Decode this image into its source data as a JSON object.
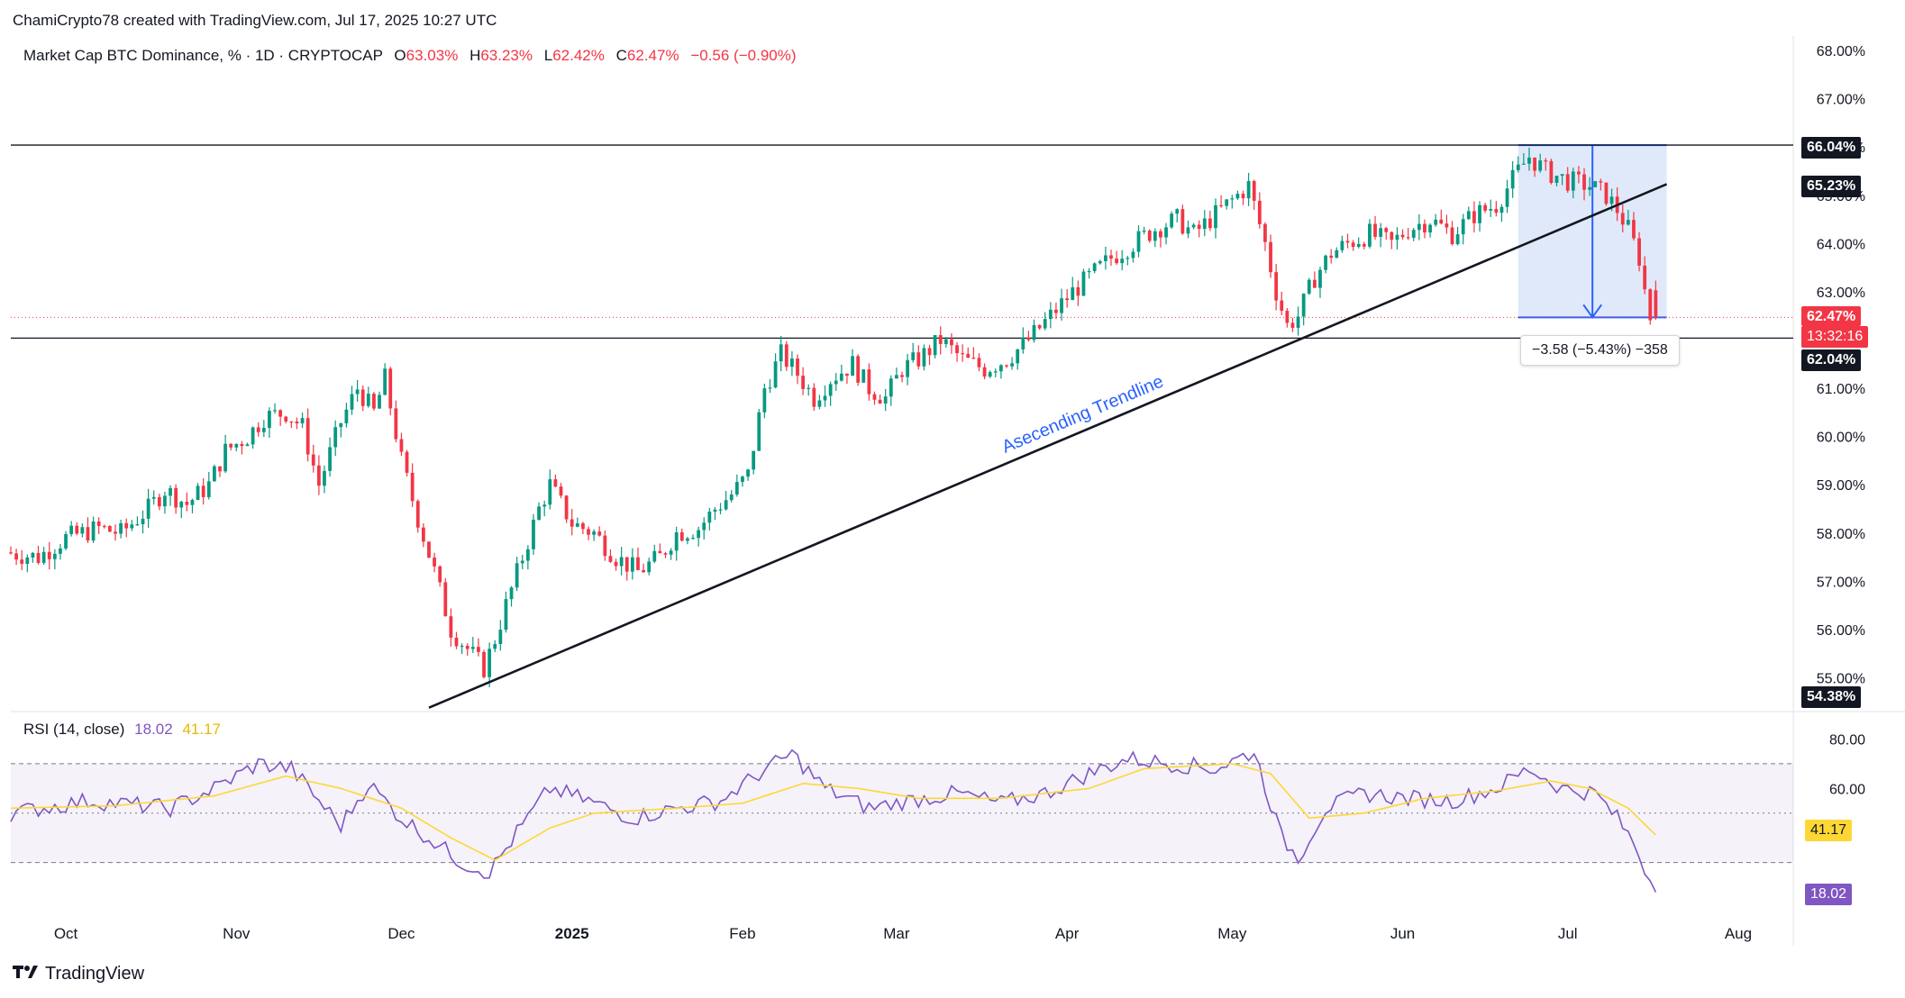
{
  "header": {
    "credit": "ChamiCrypto78 created with TradingView.com, Jul 17, 2025 10:27 UTC"
  },
  "legend": {
    "symbol": "Market Cap BTC Dominance, % · 1D · CRYPTOCAP",
    "o_label": "O",
    "o_value": "63.03%",
    "h_label": "H",
    "h_value": "63.23%",
    "l_label": "L",
    "l_value": "62.42%",
    "c_label": "C",
    "c_value": "62.47%",
    "change": "−0.56 (−0.90%)"
  },
  "rsi_legend": {
    "label": "RSI (14, close)",
    "rsi_value": "18.02",
    "ma_value": "41.17"
  },
  "price_tags": {
    "resistance": "66.04%",
    "trend_at_cursor": "65.23%",
    "last_price": "62.47%",
    "countdown": "13:32:16",
    "support": "62.04%",
    "trend_start": "54.38%"
  },
  "rsi_tags": {
    "ma": "41.17",
    "rsi": "18.02"
  },
  "measurement": {
    "text": "−3.58 (−5.43%) −358"
  },
  "annotation": {
    "trendline_label": "Asecending Trendline"
  },
  "footer": {
    "brand": "TradingView"
  },
  "colors": {
    "up": "#089981",
    "down": "#f23645",
    "rsi": "#7e57c2",
    "rsi_ma": "#fdd835",
    "measure_fill": "#dbe5f8",
    "measure_line": "#2962ff",
    "trendline": "#131722"
  },
  "chart_data": [
    {
      "type": "candlestick",
      "title": "Market Cap BTC Dominance, % · 1D · CRYPTOCAP",
      "x_range": [
        "2024-09-21",
        "2025-08-11"
      ],
      "ylim": [
        54.3,
        68.3
      ],
      "y_ticks": [
        "68.00%",
        "67.00%",
        "66.00%",
        "65.00%",
        "64.00%",
        "63.00%",
        "62.00%",
        "61.00%",
        "60.00%",
        "59.00%",
        "58.00%",
        "57.00%",
        "56.00%",
        "55.00%"
      ],
      "x_ticks": [
        "Oct",
        "Nov",
        "Dec",
        "2025",
        "Feb",
        "Mar",
        "Apr",
        "May",
        "Jun",
        "Jul",
        "Aug"
      ],
      "close_path": [
        [
          "2024-09-21",
          57.6
        ],
        [
          "2024-09-27",
          57.5
        ],
        [
          "2024-10-02",
          57.9
        ],
        [
          "2024-10-08",
          58.1
        ],
        [
          "2024-10-12",
          58.0
        ],
        [
          "2024-10-17",
          58.5
        ],
        [
          "2024-10-20",
          58.9
        ],
        [
          "2024-10-24",
          58.6
        ],
        [
          "2024-10-28",
          59.0
        ],
        [
          "2024-10-31",
          59.7
        ],
        [
          "2024-11-04",
          60.0
        ],
        [
          "2024-11-07",
          60.4
        ],
        [
          "2024-11-11",
          60.5
        ],
        [
          "2024-11-14",
          60.2
        ],
        [
          "2024-11-17",
          59.0
        ],
        [
          "2024-11-21",
          60.3
        ],
        [
          "2024-11-24",
          61.0
        ],
        [
          "2024-11-27",
          60.5
        ],
        [
          "2024-11-29",
          61.2
        ],
        [
          "2024-12-02",
          59.5
        ],
        [
          "2024-12-05",
          58.3
        ],
        [
          "2024-12-08",
          57.2
        ],
        [
          "2024-12-11",
          56.0
        ],
        [
          "2024-12-14",
          55.6
        ],
        [
          "2024-12-17",
          55.2
        ],
        [
          "2024-12-19",
          55.8
        ],
        [
          "2024-12-21",
          56.5
        ],
        [
          "2024-12-24",
          57.5
        ],
        [
          "2024-12-27",
          58.5
        ],
        [
          "2024-12-29",
          59.0
        ],
        [
          "2025-01-02",
          58.2
        ],
        [
          "2025-01-06",
          58.0
        ],
        [
          "2025-01-10",
          57.5
        ],
        [
          "2025-01-14",
          57.2
        ],
        [
          "2025-01-18",
          57.5
        ],
        [
          "2025-01-21",
          58.0
        ],
        [
          "2025-01-25",
          58.1
        ],
        [
          "2025-01-28",
          58.5
        ],
        [
          "2025-01-31",
          58.8
        ],
        [
          "2025-02-03",
          59.2
        ],
        [
          "2025-02-06",
          61.0
        ],
        [
          "2025-02-09",
          61.7
        ],
        [
          "2025-02-12",
          61.3
        ],
        [
          "2025-02-15",
          60.8
        ],
        [
          "2025-02-18",
          61.2
        ],
        [
          "2025-02-22",
          61.5
        ],
        [
          "2025-02-25",
          61.0
        ],
        [
          "2025-02-28",
          60.8
        ],
        [
          "2025-03-03",
          61.4
        ],
        [
          "2025-03-06",
          61.6
        ],
        [
          "2025-03-10",
          62.0
        ],
        [
          "2025-03-14",
          61.6
        ],
        [
          "2025-03-18",
          61.4
        ],
        [
          "2025-03-22",
          61.6
        ],
        [
          "2025-03-26",
          62.0
        ],
        [
          "2025-03-30",
          62.5
        ],
        [
          "2025-04-03",
          63.0
        ],
        [
          "2025-04-07",
          63.4
        ],
        [
          "2025-04-10",
          63.7
        ],
        [
          "2025-04-14",
          64.0
        ],
        [
          "2025-04-18",
          64.3
        ],
        [
          "2025-04-22",
          64.5
        ],
        [
          "2025-04-25",
          64.2
        ],
        [
          "2025-04-28",
          64.5
        ],
        [
          "2025-05-01",
          64.8
        ],
        [
          "2025-05-05",
          65.2
        ],
        [
          "2025-05-08",
          64.0
        ],
        [
          "2025-05-10",
          63.0
        ],
        [
          "2025-05-12",
          62.3
        ],
        [
          "2025-05-14",
          62.5
        ],
        [
          "2025-05-17",
          63.3
        ],
        [
          "2025-05-20",
          63.8
        ],
        [
          "2025-05-23",
          64.0
        ],
        [
          "2025-05-27",
          64.2
        ],
        [
          "2025-05-31",
          64.0
        ],
        [
          "2025-06-03",
          64.3
        ],
        [
          "2025-06-07",
          64.5
        ],
        [
          "2025-06-11",
          64.2
        ],
        [
          "2025-06-15",
          64.6
        ],
        [
          "2025-06-19",
          64.8
        ],
        [
          "2025-06-23",
          65.5
        ],
        [
          "2025-06-25",
          65.8
        ],
        [
          "2025-06-28",
          65.5
        ],
        [
          "2025-07-02",
          65.3
        ],
        [
          "2025-07-06",
          65.2
        ],
        [
          "2025-07-09",
          65.0
        ],
        [
          "2025-07-11",
          64.7
        ],
        [
          "2025-07-13",
          64.3
        ],
        [
          "2025-07-15",
          63.7
        ],
        [
          "2025-07-16",
          63.03
        ],
        [
          "2025-07-17",
          62.47
        ]
      ],
      "last_candle": {
        "date": "2025-07-17",
        "open": 63.03,
        "high": 63.23,
        "low": 62.42,
        "close": 62.47
      },
      "horizontal_lines": [
        66.04,
        62.04
      ],
      "trendline": {
        "label": "Asecending Trendline",
        "from": [
          "2024-12-06",
          54.38
        ],
        "to": [
          "2025-07-19",
          65.23
        ]
      },
      "measurement": {
        "from_date": "2025-06-22",
        "to_date": "2025-07-19",
        "from_value": 66.04,
        "to_value": 62.47,
        "change": -3.58,
        "change_pct": -5.43,
        "ticks": -358
      }
    },
    {
      "type": "line",
      "title": "RSI (14, close)",
      "ylim": [
        0,
        90
      ],
      "y_ticks": [
        "80.00",
        "60.00"
      ],
      "levels": [
        70,
        50,
        30
      ],
      "series": [
        {
          "name": "RSI",
          "values_path": [
            [
              "2024-09-21",
              50
            ],
            [
              "2024-10-05",
              55
            ],
            [
              "2024-10-20",
              52
            ],
            [
              "2024-10-28",
              60
            ],
            [
              "2024-11-05",
              70
            ],
            [
              "2024-11-11",
              68
            ],
            [
              "2024-11-16",
              55
            ],
            [
              "2024-11-20",
              45
            ],
            [
              "2024-11-25",
              62
            ],
            [
              "2024-12-01",
              48
            ],
            [
              "2024-12-06",
              40
            ],
            [
              "2024-12-12",
              30
            ],
            [
              "2024-12-17",
              26
            ],
            [
              "2024-12-22",
              42
            ],
            [
              "2024-12-28",
              60
            ],
            [
              "2025-01-04",
              55
            ],
            [
              "2025-01-12",
              48
            ],
            [
              "2025-01-20",
              52
            ],
            [
              "2025-01-28",
              55
            ],
            [
              "2025-02-04",
              66
            ],
            [
              "2025-02-10",
              74
            ],
            [
              "2025-02-16",
              60
            ],
            [
              "2025-02-24",
              52
            ],
            [
              "2025-03-03",
              55
            ],
            [
              "2025-03-12",
              58
            ],
            [
              "2025-03-20",
              54
            ],
            [
              "2025-03-28",
              58
            ],
            [
              "2025-04-05",
              66
            ],
            [
              "2025-04-12",
              72
            ],
            [
              "2025-04-20",
              70
            ],
            [
              "2025-04-28",
              68
            ],
            [
              "2025-05-05",
              75
            ],
            [
              "2025-05-10",
              40
            ],
            [
              "2025-05-13",
              32
            ],
            [
              "2025-05-18",
              52
            ],
            [
              "2025-05-25",
              58
            ],
            [
              "2025-06-02",
              56
            ],
            [
              "2025-06-10",
              55
            ],
            [
              "2025-06-18",
              60
            ],
            [
              "2025-06-24",
              68
            ],
            [
              "2025-06-30",
              60
            ],
            [
              "2025-07-06",
              58
            ],
            [
              "2025-07-10",
              48
            ],
            [
              "2025-07-13",
              38
            ],
            [
              "2025-07-15",
              28
            ],
            [
              "2025-07-17",
              18.02
            ]
          ]
        },
        {
          "name": "RSI-based MA",
          "values_path": [
            [
              "2024-09-21",
              52
            ],
            [
              "2024-10-10",
              53
            ],
            [
              "2024-10-28",
              57
            ],
            [
              "2024-11-10",
              65
            ],
            [
              "2024-11-20",
              60
            ],
            [
              "2024-12-01",
              52
            ],
            [
              "2024-12-10",
              40
            ],
            [
              "2024-12-18",
              31
            ],
            [
              "2024-12-28",
              44
            ],
            [
              "2025-01-05",
              50
            ],
            [
              "2025-01-20",
              52
            ],
            [
              "2025-02-01",
              54
            ],
            [
              "2025-02-12",
              62
            ],
            [
              "2025-02-22",
              60
            ],
            [
              "2025-03-05",
              56
            ],
            [
              "2025-03-20",
              56
            ],
            [
              "2025-04-05",
              60
            ],
            [
              "2025-04-15",
              68
            ],
            [
              "2025-05-01",
              70
            ],
            [
              "2025-05-08",
              66
            ],
            [
              "2025-05-15",
              48
            ],
            [
              "2025-05-25",
              50
            ],
            [
              "2025-06-05",
              56
            ],
            [
              "2025-06-18",
              59
            ],
            [
              "2025-06-28",
              63
            ],
            [
              "2025-07-05",
              60
            ],
            [
              "2025-07-12",
              52
            ],
            [
              "2025-07-17",
              41.17
            ]
          ]
        }
      ]
    }
  ]
}
